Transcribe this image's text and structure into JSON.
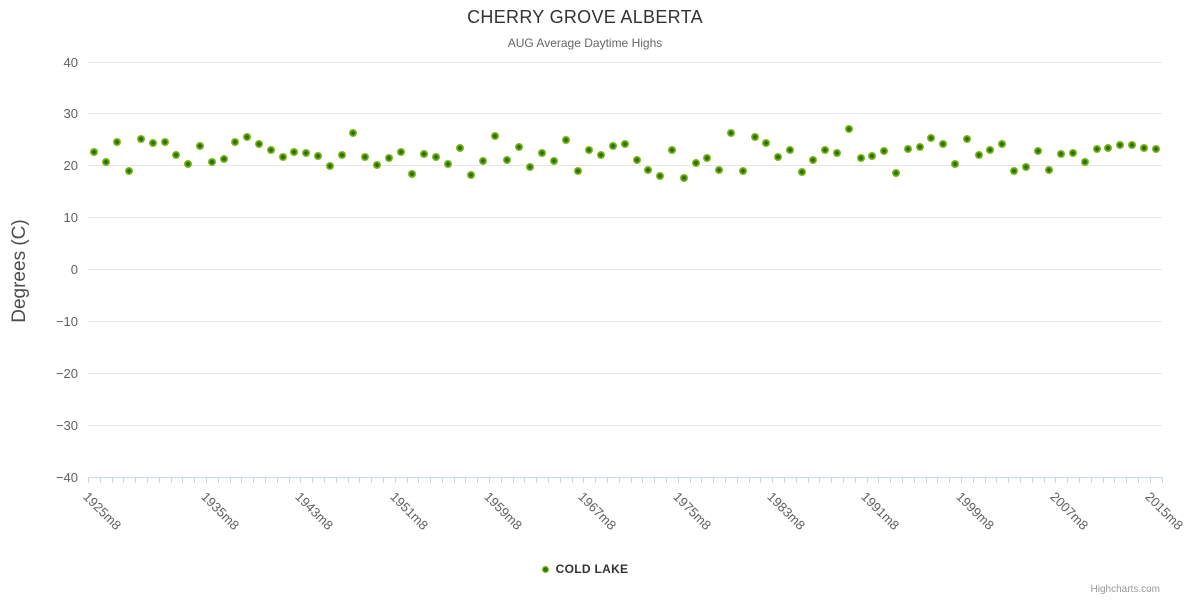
{
  "title": "CHERRY GROVE ALBERTA",
  "subtitle": "AUG Average Daytime Highs",
  "yaxis": {
    "title": "Degrees (C)",
    "tick_values": [
      40,
      30,
      20,
      10,
      0,
      -10,
      -20,
      -30,
      -40
    ],
    "tick_labels": [
      "40",
      "30",
      "20",
      "10",
      "0",
      "−10",
      "−20",
      "−30",
      "−40"
    ],
    "min": -40,
    "max": 40
  },
  "xaxis": {
    "visible_labels": [
      "1925m8",
      "1935m8",
      "1943m8",
      "1951m8",
      "1959m8",
      "1967m8",
      "1975m8",
      "1983m8",
      "1991m8",
      "1999m8",
      "2007m8",
      "2015m8"
    ]
  },
  "legend": {
    "series_label": "COLD LAKE"
  },
  "credits": "Highcharts.com",
  "colors": {
    "marker_outer": "#77bd18",
    "marker_inner": "#2c6606",
    "gridline": "#e6e6e6",
    "axis_line": "#ccd6eb",
    "axis_label": "#606060",
    "title": "#333333",
    "subtitle": "#666666"
  },
  "chart_data": {
    "type": "scatter",
    "title": "CHERRY GROVE ALBERTA",
    "subtitle": "AUG Average Daytime Highs",
    "xlabel": "",
    "ylabel": "Degrees (C)",
    "ylim": [
      -40,
      40
    ],
    "grid": true,
    "legend_position": "bottom-center",
    "series_name": "COLD LAKE",
    "categories": [
      "1925m8",
      "1926m8",
      "1927m8",
      "1928m8",
      "1929m8",
      "1930m8",
      "1931m8",
      "1932m8",
      "1933m8",
      "1934m8",
      "1935m8",
      "1936m8",
      "1937m8",
      "1938m8",
      "1939m8",
      "1940m8",
      "1941m8",
      "1942m8",
      "1943m8",
      "1944m8",
      "1945m8",
      "1946m8",
      "1947m8",
      "1948m8",
      "1949m8",
      "1950m8",
      "1951m8",
      "1952m8",
      "1953m8",
      "1954m8",
      "1955m8",
      "1956m8",
      "1957m8",
      "1958m8",
      "1959m8",
      "1960m8",
      "1961m8",
      "1962m8",
      "1963m8",
      "1964m8",
      "1965m8",
      "1966m8",
      "1967m8",
      "1968m8",
      "1969m8",
      "1970m8",
      "1971m8",
      "1972m8",
      "1973m8",
      "1974m8",
      "1975m8",
      "1976m8",
      "1977m8",
      "1978m8",
      "1979m8",
      "1980m8",
      "1981m8",
      "1982m8",
      "1983m8",
      "1984m8",
      "1985m8",
      "1986m8",
      "1987m8",
      "1988m8",
      "1989m8",
      "1990m8",
      "1991m8",
      "1992m8",
      "1993m8",
      "1994m8",
      "1995m8",
      "1996m8",
      "1997m8",
      "1998m8",
      "1999m8",
      "2000m8",
      "2001m8",
      "2002m8",
      "2003m8",
      "2004m8",
      "2005m8",
      "2006m8",
      "2007m8",
      "2008m8",
      "2009m8",
      "2010m8",
      "2011m8",
      "2012m8",
      "2013m8",
      "2014m8",
      "2015m8"
    ],
    "values": [
      22.6,
      20.8,
      24.5,
      18.9,
      25.2,
      24.3,
      24.5,
      22.1,
      20.4,
      23.8,
      20.7,
      21.3,
      24.5,
      25.5,
      24.1,
      23.1,
      21.7,
      22.6,
      22.4,
      21.8,
      20.0,
      22.1,
      26.4,
      21.6,
      20.1,
      21.5,
      22.7,
      18.5,
      22.2,
      21.7,
      20.3,
      23.4,
      18.3,
      21.0,
      25.8,
      21.1,
      23.7,
      19.8,
      22.5,
      21.0,
      25.0,
      19.0,
      23.0,
      22.0,
      23.9,
      24.2,
      21.1,
      19.2,
      18.1,
      23.1,
      17.7,
      20.5,
      21.5,
      19.2,
      26.4,
      19.0,
      25.5,
      24.3,
      21.6,
      23.0,
      18.7,
      21.1,
      23.0,
      22.5,
      27.1,
      21.4,
      21.9,
      22.9,
      18.6,
      23.2,
      23.6,
      25.4,
      24.2,
      20.4,
      25.2,
      22.0,
      23.0,
      24.1,
      19.0,
      19.8,
      22.8,
      19.2,
      22.3,
      22.4,
      20.8,
      23.2,
      23.4,
      24.0,
      24.0,
      23.5,
      23.2
    ]
  }
}
